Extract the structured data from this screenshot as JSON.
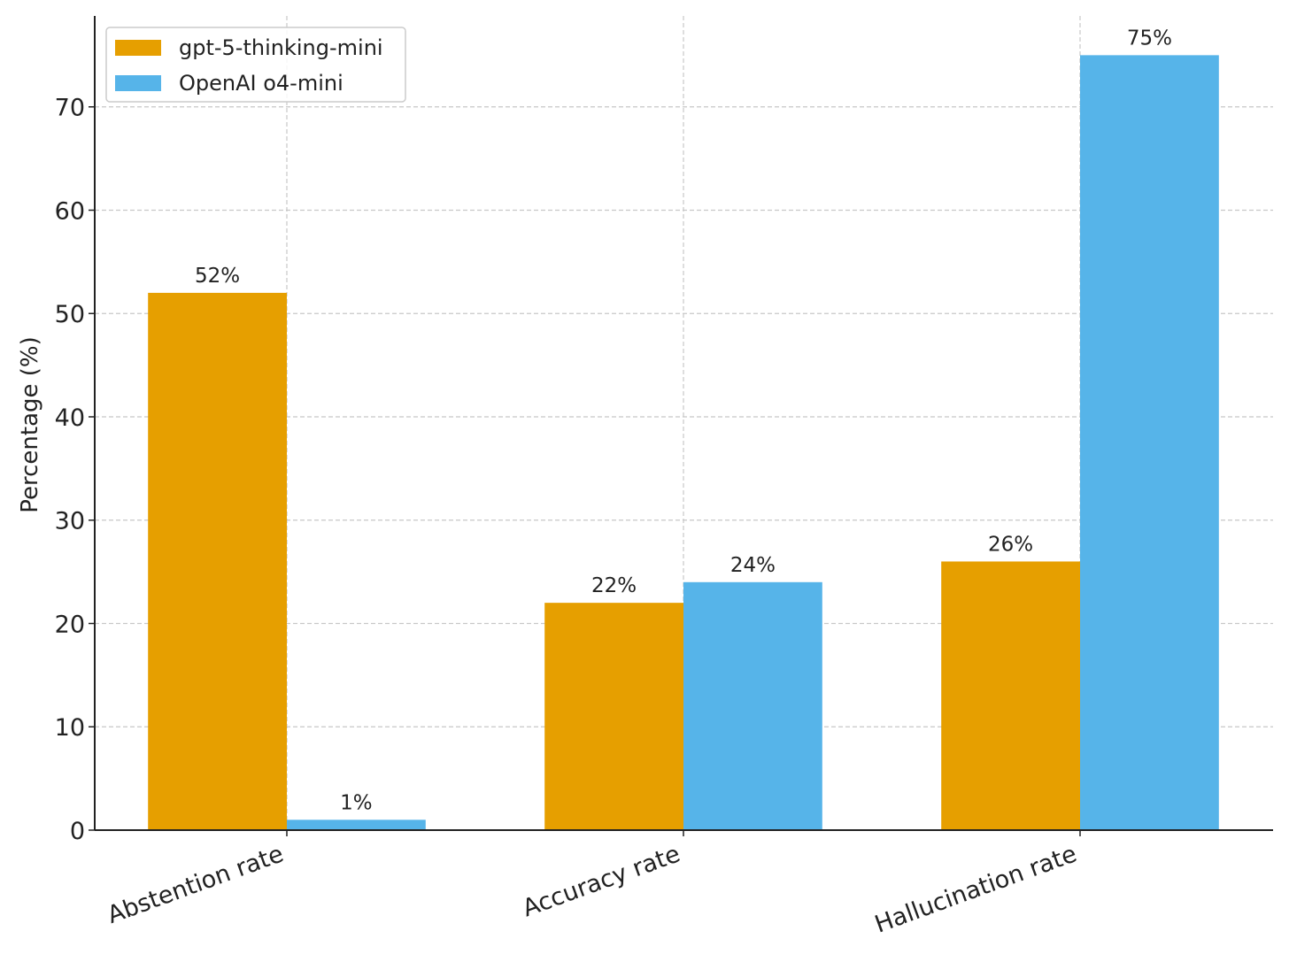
{
  "chart_data": {
    "type": "bar",
    "categories": [
      "Abstention rate",
      "Accuracy rate",
      "Hallucination rate"
    ],
    "series": [
      {
        "name": "gpt-5-thinking-mini",
        "color": "#e69f00",
        "values": [
          52,
          22,
          26
        ],
        "value_labels": [
          "52%",
          "22%",
          "26%"
        ]
      },
      {
        "name": "OpenAI o4-mini",
        "color": "#56b4e9",
        "values": [
          1,
          24,
          75
        ],
        "value_labels": [
          "1%",
          "24%",
          "75%"
        ]
      }
    ],
    "y_label": "Percentage (%)",
    "ylim": [
      0,
      78.8
    ],
    "yticks": [
      0,
      10,
      20,
      30,
      40,
      50,
      60,
      70
    ],
    "grid": true,
    "legend": "upper-left"
  }
}
